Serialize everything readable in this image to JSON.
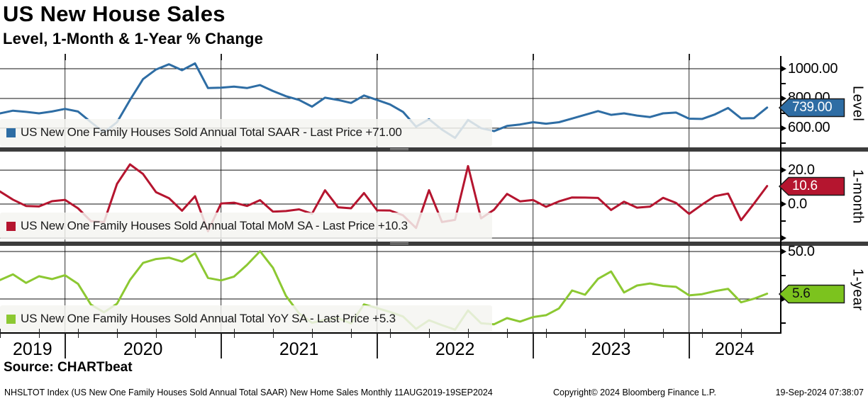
{
  "header": {
    "title": "US New House Sales",
    "subtitle": "Level, 1-Month & 1-Year % Change"
  },
  "source_line": "Source: CHARTbeat",
  "footer": {
    "left": "NHSLTOT Index (US New One Family Houses Sold Annual Total SAAR) New Home Sales  Monthly 11AUG2019-19SEP2024",
    "center": "Copyright© 2024 Bloomberg Finance L.P.",
    "right": "19-Sep-2024 07:38:07"
  },
  "xaxis": {
    "labels": [
      "2019",
      "2020",
      "2021",
      "2022",
      "2023",
      "2024"
    ],
    "label_months": [
      2.5,
      11,
      23,
      35,
      47,
      56.5
    ],
    "year_tick_months": [
      5,
      17,
      29,
      41,
      53
    ],
    "minor_tick_step": 3,
    "months_total": 60
  },
  "panels": [
    {
      "axis_label": "Level",
      "legend": "US New One Family Houses Sold Annual Total SAAR - Last Price +71.00",
      "badge": "739.00",
      "badge_color": "#2e6da4",
      "badge_text_color": "#ffffff"
    },
    {
      "axis_label": "1-month",
      "legend": "US New One Family Houses Sold Annual Total MoM SA - Last Price +10.3",
      "badge": "10.6",
      "badge_color": "#b5152f",
      "badge_text_color": "#ffffff"
    },
    {
      "axis_label": "1-year",
      "legend": "US New One Family Houses Sold Annual Total YoY SA - Last Price +5.3",
      "badge": "5.6",
      "badge_color": "#7cc31e",
      "badge_text_color": "#111111"
    }
  ],
  "chart_data": [
    {
      "type": "line",
      "name": "US New One Family Houses Sold Annual Total SAAR",
      "panel": "Level",
      "color": "#2e6da4",
      "x_start": "Aug 2019",
      "x_end": "Jul 2024",
      "frequency": "monthly",
      "start_month": 0,
      "last": 739.0,
      "last_change": "+71.00",
      "ylim": [
        471,
        1062
      ],
      "yticks": [
        {
          "v": 1000,
          "label": "1000.00"
        },
        {
          "v": 800,
          "label": "800.00"
        },
        {
          "v": 600,
          "label": "600.00"
        }
      ],
      "yticks_minor": [
        900,
        700,
        500
      ],
      "values": [
        700,
        718,
        710,
        700,
        712,
        730,
        712,
        640,
        572,
        640,
        790,
        930,
        995,
        1030,
        990,
        1036,
        870,
        873,
        880,
        870,
        890,
        850,
        815,
        790,
        745,
        805,
        790,
        770,
        820,
        790,
        760,
        710,
        610,
        660,
        590,
        535,
        655,
        600,
        580,
        615,
        625,
        640,
        630,
        640,
        665,
        690,
        715,
        690,
        700,
        685,
        675,
        700,
        705,
        664,
        662,
        693,
        736,
        666,
        668,
        739
      ]
    },
    {
      "type": "line",
      "name": "US New One Family Houses Sold Annual Total MoM SA",
      "panel": "1-month",
      "color": "#b5152f",
      "x_start": "Aug 2019",
      "x_end": "Jul 2024",
      "frequency": "monthly",
      "start_month": 0,
      "last": 10.6,
      "last_change": "+10.3",
      "ylim": [
        -22.1,
        30.9
      ],
      "yticks": [
        {
          "v": 20,
          "label": "20.0"
        },
        {
          "v": 0,
          "label": "0.0"
        },
        {
          "v": -20,
          "label": ""
        }
      ],
      "yticks_minor": [
        10,
        -10
      ],
      "values": [
        7.4,
        2.6,
        -1.1,
        -1.4,
        1.7,
        2.5,
        -2.5,
        -10.1,
        -10.6,
        11.9,
        23.4,
        17.7,
        7.0,
        3.5,
        -3.9,
        4.6,
        -16.0,
        0.3,
        0.8,
        -1.1,
        2.3,
        -4.5,
        -4.1,
        -3.1,
        -5.7,
        8.1,
        -1.9,
        -2.5,
        6.5,
        -3.7,
        -3.8,
        -6.6,
        -14.1,
        8.2,
        -10.6,
        -9.3,
        22.4,
        -8.4,
        -3.3,
        6.0,
        1.6,
        2.4,
        -1.6,
        1.6,
        3.9,
        3.8,
        3.6,
        -3.5,
        1.4,
        -2.1,
        -1.5,
        3.7,
        0.7,
        -5.8,
        -0.3,
        4.7,
        6.2,
        -9.5,
        0.3,
        10.6
      ]
    },
    {
      "type": "line",
      "name": "US New One Family Houses Sold Annual Total YoY SA",
      "panel": "1-year",
      "color": "#8cc832",
      "x_start": "Aug 2019",
      "x_end": "Jul 2024",
      "frequency": "monthly",
      "start_month": 0,
      "last": 5.6,
      "last_change": "+5.3",
      "ylim": [
        -35.8,
        56
      ],
      "yticks": [
        {
          "v": 50,
          "label": "50.0"
        },
        {
          "v": 0,
          "label": "0.0"
        }
      ],
      "yticks_minor": [
        25,
        -25
      ],
      "values": [
        20.0,
        26.0,
        17.0,
        24.0,
        21.0,
        25.0,
        16.0,
        -6.0,
        -14.0,
        -5.0,
        20.0,
        38.0,
        42.1,
        43.5,
        39.4,
        48.0,
        22.2,
        19.6,
        23.6,
        35.9,
        50.3,
        32.8,
        3.2,
        -15.1,
        -25.1,
        -21.8,
        -20.2,
        -25.7,
        -5.7,
        -9.5,
        -13.6,
        -18.4,
        -31.5,
        -22.4,
        -27.6,
        -32.3,
        -12.1,
        -25.5,
        -26.6,
        -20.1,
        -23.8,
        -19.0,
        -17.1,
        -9.9,
        9.0,
        4.5,
        21.2,
        29.0,
        6.9,
        14.2,
        16.4,
        13.8,
        12.8,
        3.8,
        5.1,
        8.3,
        10.7,
        -3.5,
        0.3,
        5.6
      ]
    }
  ]
}
